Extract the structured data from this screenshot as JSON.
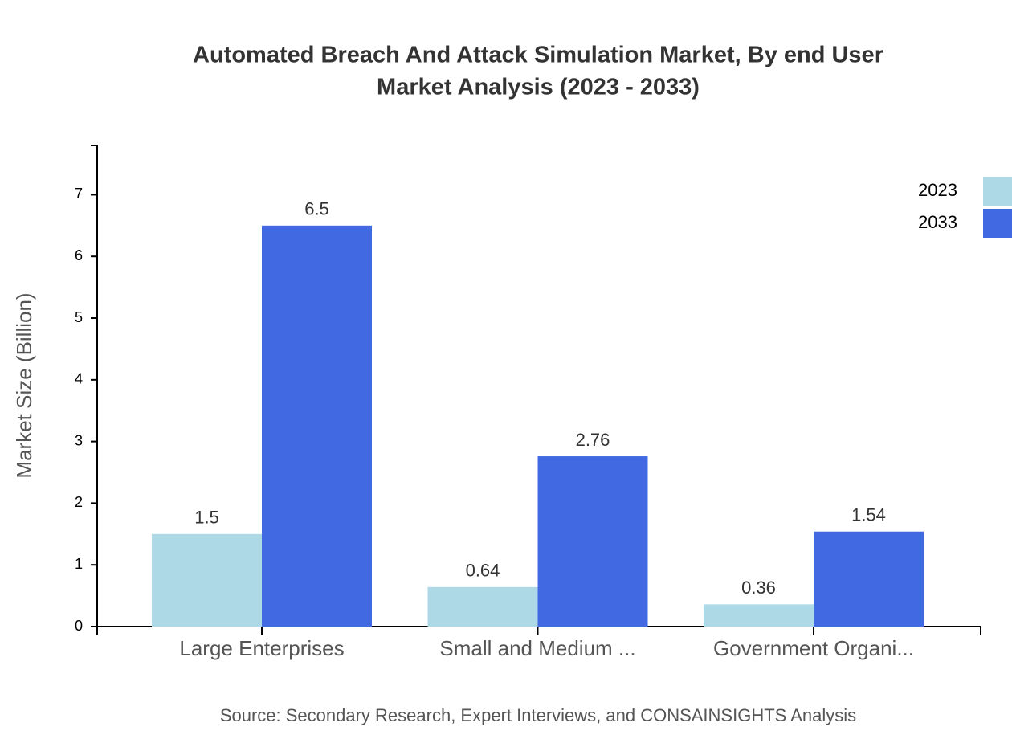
{
  "chart_data": {
    "type": "bar",
    "title": [
      "Automated Breach And Attack Simulation Market, By end User",
      "Market Analysis (2023 - 2033)"
    ],
    "y_label": "Market Size (Billion)",
    "source": "Source: Secondary Research, Expert Interviews, and CONSAINSIGHTS Analysis",
    "categories": [
      "Large Enterprises",
      "Small and Medium ...",
      "Government Organi..."
    ],
    "series": [
      {
        "name": "2023",
        "color": "#add8e6",
        "values": [
          1.5,
          0.64,
          0.36
        ]
      },
      {
        "name": "2033",
        "color": "#4169e1",
        "values": [
          6.5,
          2.76,
          1.54
        ]
      }
    ],
    "ylim": [
      0,
      7.8
    ],
    "yticks": [
      0,
      1,
      2,
      3,
      4,
      5,
      6,
      7
    ],
    "legend": "top-right",
    "grid": false
  }
}
